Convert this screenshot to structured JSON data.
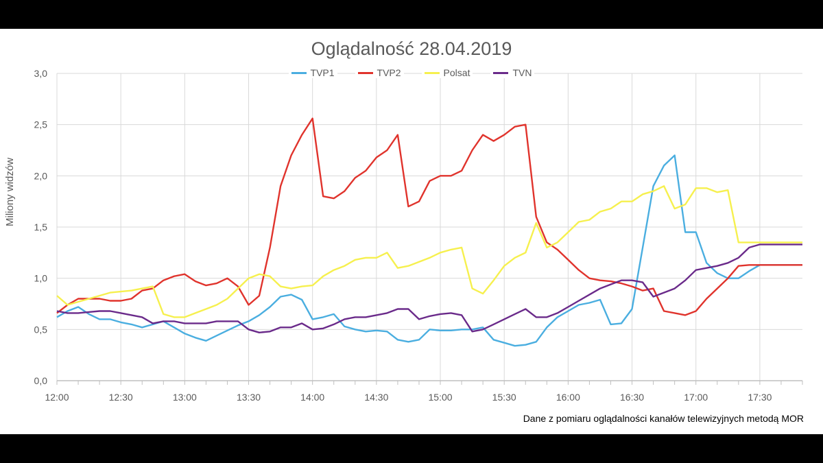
{
  "chart_data": {
    "type": "line",
    "title": "Oglądalność 28.04.2019",
    "ylabel": "Miliony widzów",
    "xlabel": "",
    "ylim": [
      0,
      3
    ],
    "yticks": [
      0,
      0.5,
      1.0,
      1.5,
      2.0,
      2.5,
      3.0
    ],
    "ytick_labels": [
      "0,0",
      "0,5",
      "1,0",
      "1,5",
      "2,0",
      "2,5",
      "3,0"
    ],
    "xtick_labels": [
      "12:00",
      "12:30",
      "13:00",
      "13:30",
      "14:00",
      "14:30",
      "15:00",
      "15:30",
      "16:00",
      "16:30",
      "17:00",
      "17:30"
    ],
    "x_range_minutes": [
      0,
      350
    ],
    "grid": true,
    "legend_position": "top",
    "series": [
      {
        "name": "TVP1",
        "color": "#4aaee0",
        "x": [
          0,
          5,
          10,
          15,
          20,
          25,
          30,
          35,
          40,
          45,
          50,
          55,
          60,
          65,
          70,
          75,
          80,
          85,
          90,
          95,
          100,
          105,
          110,
          115,
          120,
          125,
          130,
          135,
          140,
          145,
          150,
          155,
          160,
          165,
          170,
          175,
          180,
          185,
          190,
          195,
          200,
          205,
          210,
          215,
          220,
          225,
          230,
          235,
          240,
          245,
          250,
          255,
          260,
          265,
          270,
          275,
          280,
          285,
          290,
          295,
          300,
          305,
          310,
          315,
          320,
          325,
          330,
          335,
          340,
          345,
          350
        ],
        "y": [
          0.62,
          0.68,
          0.72,
          0.65,
          0.6,
          0.6,
          0.57,
          0.55,
          0.52,
          0.55,
          0.58,
          0.52,
          0.46,
          0.42,
          0.39,
          0.44,
          0.49,
          0.54,
          0.58,
          0.64,
          0.72,
          0.82,
          0.84,
          0.79,
          0.6,
          0.62,
          0.65,
          0.53,
          0.5,
          0.48,
          0.49,
          0.48,
          0.4,
          0.38,
          0.4,
          0.5,
          0.49,
          0.49,
          0.5,
          0.5,
          0.52,
          0.4,
          0.37,
          0.34,
          0.35,
          0.38,
          0.52,
          0.62,
          0.68,
          0.74,
          0.76,
          0.79,
          0.55,
          0.56,
          0.7,
          1.3,
          1.9,
          2.1,
          2.2,
          1.45,
          1.45,
          1.15,
          1.05,
          1.0,
          1.0,
          1.07,
          1.13,
          1.13,
          1.13,
          1.13,
          1.13
        ]
      },
      {
        "name": "TVP2",
        "color": "#e0332c",
        "x": [
          0,
          5,
          10,
          15,
          20,
          25,
          30,
          35,
          40,
          45,
          50,
          55,
          60,
          65,
          70,
          75,
          80,
          85,
          90,
          95,
          100,
          105,
          110,
          115,
          120,
          125,
          130,
          135,
          140,
          145,
          150,
          155,
          160,
          165,
          170,
          175,
          180,
          185,
          190,
          195,
          200,
          205,
          210,
          215,
          220,
          225,
          230,
          235,
          240,
          245,
          250,
          255,
          260,
          265,
          270,
          275,
          280,
          285,
          290,
          295,
          300,
          305,
          310,
          315,
          320,
          325,
          330,
          335,
          340,
          345,
          350
        ],
        "y": [
          0.66,
          0.74,
          0.8,
          0.8,
          0.8,
          0.78,
          0.78,
          0.8,
          0.88,
          0.9,
          0.98,
          1.02,
          1.04,
          0.97,
          0.93,
          0.95,
          1.0,
          0.92,
          0.74,
          0.83,
          1.3,
          1.9,
          2.2,
          2.4,
          2.56,
          1.8,
          1.78,
          1.85,
          1.98,
          2.05,
          2.18,
          2.25,
          2.4,
          1.7,
          1.75,
          1.95,
          2.0,
          2.0,
          2.05,
          2.25,
          2.4,
          2.34,
          2.4,
          2.48,
          2.5,
          1.6,
          1.35,
          1.28,
          1.18,
          1.08,
          1.0,
          0.98,
          0.97,
          0.95,
          0.92,
          0.88,
          0.9,
          0.68,
          0.66,
          0.64,
          0.68,
          0.8,
          0.9,
          1.0,
          1.12,
          1.13,
          1.13,
          1.13,
          1.13,
          1.13,
          1.13
        ]
      },
      {
        "name": "Polsat",
        "color": "#f6f04e",
        "x": [
          0,
          5,
          10,
          15,
          20,
          25,
          30,
          35,
          40,
          45,
          50,
          55,
          60,
          65,
          70,
          75,
          80,
          85,
          90,
          95,
          100,
          105,
          110,
          115,
          120,
          125,
          130,
          135,
          140,
          145,
          150,
          155,
          160,
          165,
          170,
          175,
          180,
          185,
          190,
          195,
          200,
          205,
          210,
          215,
          220,
          225,
          230,
          235,
          240,
          245,
          250,
          255,
          260,
          265,
          270,
          275,
          280,
          285,
          290,
          295,
          300,
          305,
          310,
          315,
          320,
          325,
          330,
          335,
          340,
          345,
          350
        ],
        "y": [
          0.83,
          0.74,
          0.77,
          0.8,
          0.83,
          0.86,
          0.87,
          0.88,
          0.9,
          0.92,
          0.65,
          0.62,
          0.62,
          0.66,
          0.7,
          0.74,
          0.8,
          0.9,
          1.0,
          1.04,
          1.02,
          0.92,
          0.9,
          0.92,
          0.93,
          1.02,
          1.08,
          1.12,
          1.18,
          1.2,
          1.2,
          1.25,
          1.1,
          1.12,
          1.16,
          1.2,
          1.25,
          1.28,
          1.3,
          0.9,
          0.85,
          0.98,
          1.12,
          1.2,
          1.25,
          1.54,
          1.3,
          1.35,
          1.45,
          1.55,
          1.57,
          1.65,
          1.68,
          1.75,
          1.75,
          1.82,
          1.85,
          1.9,
          1.68,
          1.72,
          1.88,
          1.88,
          1.84,
          1.86,
          1.35,
          1.35,
          1.35,
          1.35,
          1.35,
          1.35,
          1.35
        ]
      },
      {
        "name": "TVN",
        "color": "#6a2a8a",
        "x": [
          0,
          5,
          10,
          15,
          20,
          25,
          30,
          35,
          40,
          45,
          50,
          55,
          60,
          65,
          70,
          75,
          80,
          85,
          90,
          95,
          100,
          105,
          110,
          115,
          120,
          125,
          130,
          135,
          140,
          145,
          150,
          155,
          160,
          165,
          170,
          175,
          180,
          185,
          190,
          195,
          200,
          205,
          210,
          215,
          220,
          225,
          230,
          235,
          240,
          245,
          250,
          255,
          260,
          265,
          270,
          275,
          280,
          285,
          290,
          295,
          300,
          305,
          310,
          315,
          320,
          325,
          330,
          335,
          340,
          345,
          350
        ],
        "y": [
          0.68,
          0.66,
          0.66,
          0.67,
          0.68,
          0.68,
          0.66,
          0.64,
          0.62,
          0.56,
          0.58,
          0.58,
          0.56,
          0.56,
          0.56,
          0.58,
          0.58,
          0.58,
          0.5,
          0.47,
          0.48,
          0.52,
          0.52,
          0.56,
          0.5,
          0.51,
          0.55,
          0.6,
          0.62,
          0.62,
          0.64,
          0.66,
          0.7,
          0.7,
          0.6,
          0.63,
          0.65,
          0.66,
          0.64,
          0.48,
          0.5,
          0.55,
          0.6,
          0.65,
          0.7,
          0.62,
          0.62,
          0.66,
          0.72,
          0.78,
          0.84,
          0.9,
          0.94,
          0.98,
          0.98,
          0.96,
          0.82,
          0.86,
          0.9,
          0.98,
          1.08,
          1.1,
          1.12,
          1.15,
          1.2,
          1.3,
          1.33,
          1.33,
          1.33,
          1.33,
          1.33
        ]
      }
    ]
  },
  "source_note": "Dane z pomiaru oglądalności kanałów telewizyjnych metodą MOR"
}
